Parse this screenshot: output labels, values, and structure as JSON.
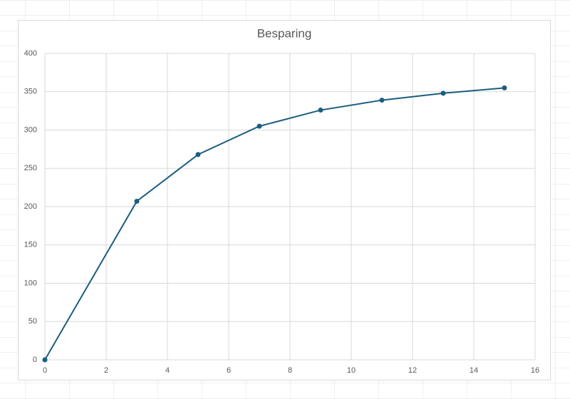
{
  "chart_data": {
    "type": "line",
    "title": "Besparing",
    "x": [
      0,
      3,
      5,
      7,
      9,
      11,
      13,
      15
    ],
    "series": [
      {
        "color": "#1b5e7e",
        "values": [
          0,
          207,
          268,
          305,
          326,
          339,
          348,
          355
        ]
      }
    ],
    "xlim": [
      0,
      16
    ],
    "xticks": [
      0,
      2,
      4,
      6,
      8,
      10,
      12,
      14,
      16
    ],
    "ylim": [
      0,
      400
    ],
    "yticks": [
      0,
      50,
      100,
      150,
      200,
      250,
      300,
      350,
      400
    ],
    "grid": true,
    "markers": true
  }
}
